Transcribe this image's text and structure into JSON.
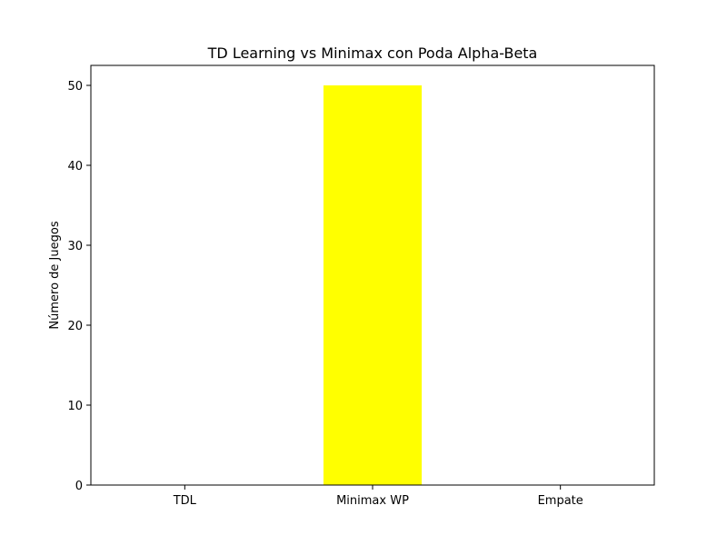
{
  "chart_data": {
    "type": "bar",
    "title": "TD Learning vs Minimax con Poda Alpha-Beta",
    "xlabel": "",
    "ylabel": "Número de Juegos",
    "categories": [
      "TDL",
      "Minimax WP",
      "Empate"
    ],
    "values": [
      0,
      50,
      0
    ],
    "bar_color": "#ffff00",
    "ylim": [
      0,
      52.5
    ],
    "yticks": [
      0,
      10,
      20,
      30,
      40,
      50
    ],
    "grid": false,
    "legend": "none"
  }
}
